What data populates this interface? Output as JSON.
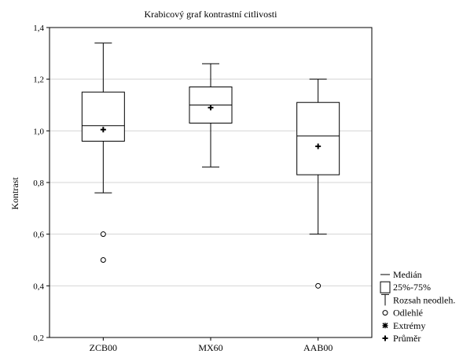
{
  "chart_data": {
    "type": "box",
    "title": "Krabicový graf kontrastní citlivosti",
    "ylabel": "Kontrast",
    "xlabel": "",
    "ylim": [
      0.2,
      1.4
    ],
    "yticks": [
      0.2,
      0.4,
      0.6,
      0.8,
      1.0,
      1.2,
      1.4
    ],
    "ytick_labels": [
      "0,2",
      "0,4",
      "0,6",
      "0,8",
      "1,0",
      "1,2",
      "1,4"
    ],
    "grid": "horizontal",
    "categories": [
      "ZCB00",
      "MX60",
      "AAB00"
    ],
    "boxes": [
      {
        "category": "ZCB00",
        "whisker_low": 0.76,
        "q1": 0.96,
        "median": 1.02,
        "q3": 1.15,
        "whisker_high": 1.34,
        "mean": 1.005,
        "outliers": [
          0.6,
          0.5
        ],
        "extremes": []
      },
      {
        "category": "MX60",
        "whisker_low": 0.86,
        "q1": 1.03,
        "median": 1.1,
        "q3": 1.17,
        "whisker_high": 1.26,
        "mean": 1.09,
        "outliers": [],
        "extremes": []
      },
      {
        "category": "AAB00",
        "whisker_low": 0.6,
        "q1": 0.83,
        "median": 0.98,
        "q3": 1.11,
        "whisker_high": 1.2,
        "mean": 0.94,
        "outliers": [
          0.4
        ],
        "extremes": []
      }
    ],
    "legend": {
      "position": "right-bottom",
      "items": [
        {
          "key": "median",
          "label": "Medián"
        },
        {
          "key": "box",
          "label": "25%-75%"
        },
        {
          "key": "whisker",
          "label": "Rozsah neodleh."
        },
        {
          "key": "outlier",
          "label": "Odlehlé"
        },
        {
          "key": "extreme",
          "label": "Extrémy"
        },
        {
          "key": "mean",
          "label": "Průměr"
        }
      ]
    }
  }
}
